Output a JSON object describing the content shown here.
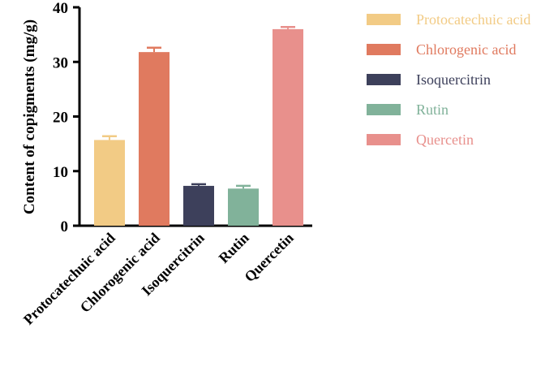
{
  "chart_data": {
    "type": "bar",
    "title": "",
    "xlabel": "",
    "ylabel": "Content of copigments (mg/g)",
    "ylim": [
      0,
      40
    ],
    "yticks": [
      0,
      10,
      20,
      30,
      40
    ],
    "categories": [
      "Protocatechuic acid",
      "Chlorogenic acid",
      "Isoquercitrin",
      "Rutin",
      "Quercetin"
    ],
    "values": [
      15.7,
      31.8,
      7.3,
      6.8,
      36.0
    ],
    "errors": [
      0.7,
      0.8,
      0.3,
      0.5,
      0.4
    ],
    "colors": [
      "#f2cb85",
      "#e07a5f",
      "#3d405b",
      "#81b29a",
      "#e8908c"
    ],
    "legend": {
      "position": "right",
      "entries": [
        "Protocatechuic acid",
        "Chlorogenic acid",
        "Isoquercitrin",
        "Rutin",
        "Quercetin"
      ]
    },
    "grid": false
  }
}
